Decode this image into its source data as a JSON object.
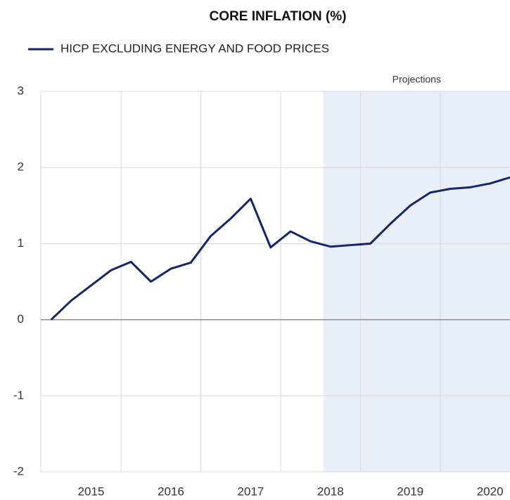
{
  "chart_data": {
    "type": "line",
    "title": "CORE INFLATION (%)",
    "x": [
      2014.5,
      2014.75,
      2015,
      2015.25,
      2015.5,
      2015.75,
      2016,
      2016.25,
      2016.5,
      2016.75,
      2017,
      2017.25,
      2017.5,
      2017.75,
      2018,
      2018.25,
      2018.5,
      2018.75,
      2019,
      2019.25,
      2019.5,
      2019.75,
      2020,
      2020.25
    ],
    "series": [
      {
        "name": "HICP EXCLUDING ENERGY AND FOOD PRICES",
        "color": "#13256b",
        "values": [
          0.0,
          0.25,
          0.45,
          0.65,
          0.76,
          0.5,
          0.67,
          0.75,
          1.1,
          1.33,
          1.59,
          0.95,
          1.16,
          1.03,
          0.96,
          0.98,
          1.0,
          1.26,
          1.5,
          1.67,
          1.72,
          1.74,
          1.79,
          1.87
        ]
      }
    ],
    "xlim": [
      2014.37,
      2020.25
    ],
    "xticks": [
      2015,
      2016,
      2017,
      2018,
      2019,
      2020
    ],
    "ylim": [
      -2,
      3
    ],
    "yticks": [
      -2,
      -1,
      0,
      1,
      2,
      3
    ],
    "grid": true,
    "shaded_region": {
      "label": "Projections",
      "start": 2017.91,
      "color": "#e9eef7"
    },
    "legend": "top-left"
  }
}
